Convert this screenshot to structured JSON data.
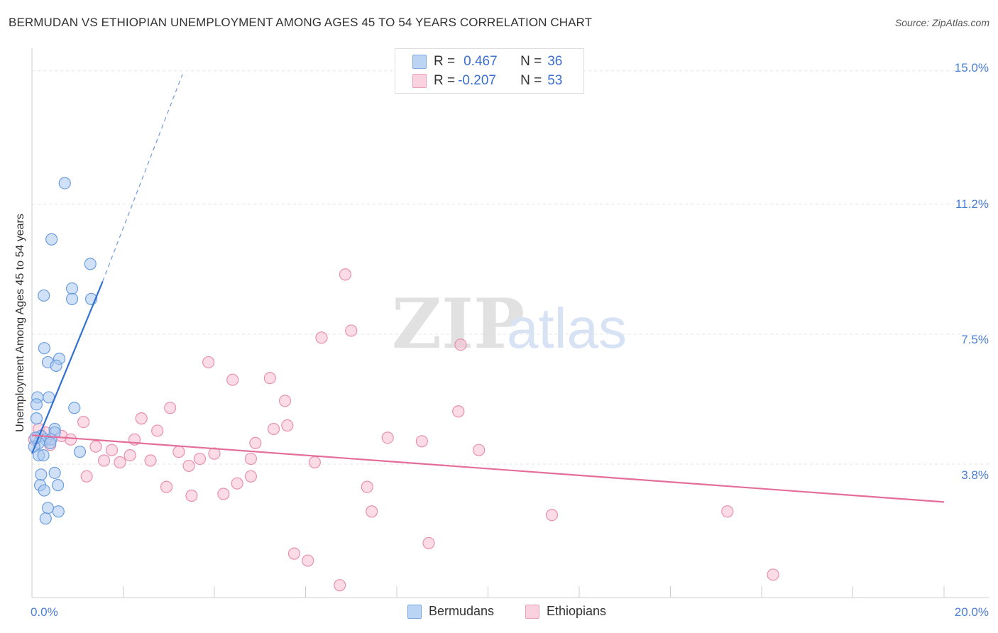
{
  "header": {
    "title": "BERMUDAN VS ETHIOPIAN UNEMPLOYMENT AMONG AGES 45 TO 54 YEARS CORRELATION CHART",
    "source": "Source: ZipAtlas.com"
  },
  "watermark": {
    "zip": "ZIP",
    "atlas": "atlas"
  },
  "legend": {
    "rows": [
      {
        "r_label": "R =",
        "r_value": "0.467",
        "n_label": "N =",
        "n_value": "36"
      },
      {
        "r_label": "R =",
        "r_value": "-0.207",
        "n_label": "N =",
        "n_value": "53"
      }
    ],
    "series": [
      "Bermudans",
      "Ethiopians"
    ]
  },
  "colors": {
    "bermudan_fill": "#a9c8f0",
    "bermudan_stroke": "#6b9ee0",
    "bermudan_line": "#3070d0",
    "ethiopian_fill": "#f7c0d2",
    "ethiopian_stroke": "#e890ae",
    "ethiopian_line": "#e46e99",
    "axis_text": "#4a7fd6"
  },
  "chart_data": {
    "type": "scatter",
    "title": "BERMUDAN VS ETHIOPIAN UNEMPLOYMENT AMONG AGES 45 TO 54 YEARS CORRELATION CHART",
    "xlabel": "",
    "ylabel": "Unemployment Among Ages 45 to 54 years",
    "xlim": [
      0,
      20
    ],
    "ylim": [
      0,
      15.5
    ],
    "x_tick_labels": [
      "0.0%",
      "20.0%"
    ],
    "y_ticks": [
      3.8,
      7.5,
      11.2,
      15.0
    ],
    "y_tick_labels": [
      "3.8%",
      "7.5%",
      "11.2%",
      "15.0%"
    ],
    "grid": true,
    "legend_position": "top-center",
    "series": [
      {
        "name": "Bermudans",
        "r": 0.467,
        "n": 36,
        "trend": {
          "x0": 0.0,
          "y0": 4.1,
          "x1": 1.55,
          "y1": 9.0,
          "dash_x1": 3.3,
          "dash_y1": 14.9
        },
        "points": [
          [
            0.72,
            11.8
          ],
          [
            0.43,
            10.2
          ],
          [
            1.28,
            9.5
          ],
          [
            0.88,
            8.8
          ],
          [
            0.26,
            8.6
          ],
          [
            0.88,
            8.5
          ],
          [
            1.3,
            8.5
          ],
          [
            0.27,
            7.1
          ],
          [
            0.35,
            6.7
          ],
          [
            0.6,
            6.8
          ],
          [
            0.53,
            6.6
          ],
          [
            0.12,
            5.7
          ],
          [
            0.37,
            5.7
          ],
          [
            0.1,
            5.5
          ],
          [
            0.93,
            5.4
          ],
          [
            0.1,
            5.1
          ],
          [
            0.5,
            4.8
          ],
          [
            0.5,
            4.7
          ],
          [
            0.2,
            4.6
          ],
          [
            0.3,
            4.5
          ],
          [
            0.42,
            4.5
          ],
          [
            0.15,
            4.4
          ],
          [
            0.05,
            4.3
          ],
          [
            1.05,
            4.15
          ],
          [
            0.15,
            4.05
          ],
          [
            0.25,
            4.05
          ],
          [
            0.2,
            3.5
          ],
          [
            0.5,
            3.55
          ],
          [
            0.18,
            3.2
          ],
          [
            0.57,
            3.2
          ],
          [
            0.27,
            3.05
          ],
          [
            0.35,
            2.55
          ],
          [
            0.58,
            2.45
          ],
          [
            0.3,
            2.25
          ],
          [
            0.08,
            4.55
          ],
          [
            0.4,
            4.4
          ]
        ]
      },
      {
        "name": "Ethiopians",
        "r": -0.207,
        "n": 53,
        "trend": {
          "x0": 0.0,
          "y0": 4.62,
          "x1": 20.0,
          "y1": 2.72
        },
        "points": [
          [
            6.87,
            9.2
          ],
          [
            7.0,
            7.6
          ],
          [
            6.35,
            7.4
          ],
          [
            9.4,
            7.2
          ],
          [
            3.87,
            6.7
          ],
          [
            4.4,
            6.2
          ],
          [
            5.22,
            6.25
          ],
          [
            5.55,
            5.6
          ],
          [
            3.03,
            5.4
          ],
          [
            9.35,
            5.3
          ],
          [
            2.4,
            5.1
          ],
          [
            1.13,
            5.0
          ],
          [
            5.6,
            4.9
          ],
          [
            5.3,
            4.8
          ],
          [
            2.75,
            4.75
          ],
          [
            0.15,
            4.8
          ],
          [
            0.65,
            4.6
          ],
          [
            0.85,
            4.5
          ],
          [
            2.25,
            4.5
          ],
          [
            7.8,
            4.55
          ],
          [
            8.55,
            4.45
          ],
          [
            4.9,
            4.4
          ],
          [
            0.05,
            4.5
          ],
          [
            0.4,
            4.35
          ],
          [
            1.4,
            4.3
          ],
          [
            1.75,
            4.2
          ],
          [
            9.8,
            4.2
          ],
          [
            3.22,
            4.15
          ],
          [
            4.0,
            4.1
          ],
          [
            2.15,
            4.05
          ],
          [
            3.68,
            3.95
          ],
          [
            4.8,
            3.95
          ],
          [
            2.6,
            3.9
          ],
          [
            1.58,
            3.9
          ],
          [
            1.93,
            3.85
          ],
          [
            6.2,
            3.85
          ],
          [
            3.44,
            3.75
          ],
          [
            1.2,
            3.45
          ],
          [
            4.8,
            3.45
          ],
          [
            4.5,
            3.25
          ],
          [
            7.35,
            3.15
          ],
          [
            2.95,
            3.15
          ],
          [
            3.5,
            2.9
          ],
          [
            4.2,
            2.95
          ],
          [
            7.45,
            2.45
          ],
          [
            11.4,
            2.35
          ],
          [
            15.25,
            2.45
          ],
          [
            8.7,
            1.55
          ],
          [
            5.75,
            1.25
          ],
          [
            6.05,
            1.05
          ],
          [
            6.75,
            0.35
          ],
          [
            16.25,
            0.65
          ],
          [
            0.3,
            4.7
          ]
        ]
      }
    ]
  }
}
